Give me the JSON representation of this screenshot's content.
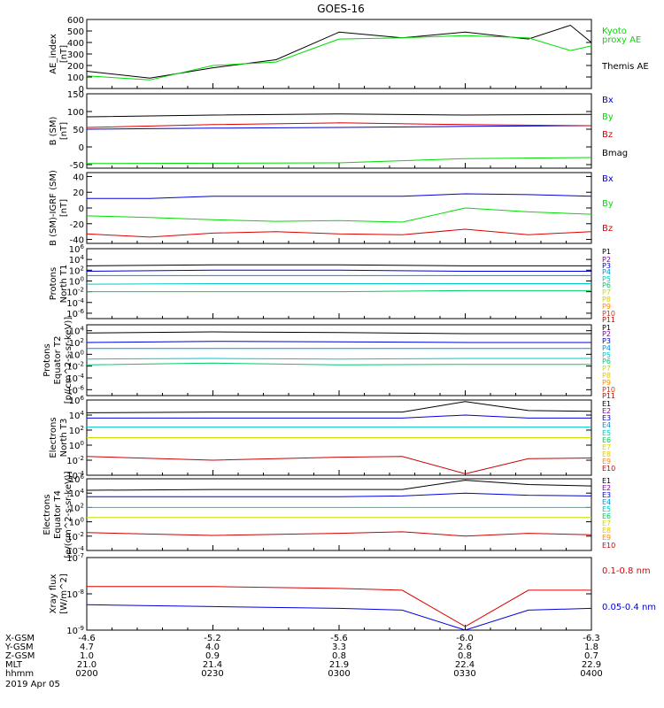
{
  "title": "GOES-16",
  "footer": {
    "date": "2019 Apr 05",
    "row_labels": [
      "X-GSM",
      "Y-GSM",
      "Z-GSM",
      "MLT",
      "hhmm"
    ],
    "columns": [
      [
        "-4.6",
        "4.7",
        "1.0",
        "21.0",
        "0200"
      ],
      [
        "-5.2",
        "4.0",
        "0.9",
        "21.4",
        "0230"
      ],
      [
        "-5.6",
        "3.3",
        "0.8",
        "21.9",
        "0300"
      ],
      [
        "-6.0",
        "2.6",
        "0.8",
        "22.4",
        "0330"
      ],
      [
        "-6.3",
        "1.8",
        "0.7",
        "22.9",
        "0400"
      ]
    ]
  },
  "chart_data": [
    {
      "type": "line",
      "ylabel": "AE_index [nT]",
      "ylim": [
        0,
        600
      ],
      "yticks": [
        "0",
        "100",
        "200",
        "300",
        "400",
        "500",
        "600"
      ],
      "scale": "linear",
      "legend": [
        {
          "label": "Kyoto",
          "color": "#00dd00"
        },
        {
          "label": "proxy AE",
          "color": "#00dd00"
        },
        {
          "label": "Themis AE",
          "color": "#000000"
        }
      ],
      "x": [
        "0200",
        "0215",
        "0230",
        "0245",
        "0300",
        "0315",
        "0330",
        "0345",
        "0355",
        "0400"
      ],
      "series": [
        {
          "name": "Themis AE",
          "color": "#000000",
          "values": [
            150,
            90,
            180,
            250,
            490,
            440,
            490,
            430,
            550,
            400
          ]
        },
        {
          "name": "Kyoto proxy AE",
          "color": "#00dd00",
          "values": [
            110,
            75,
            200,
            230,
            430,
            440,
            460,
            440,
            330,
            370
          ]
        }
      ]
    },
    {
      "type": "line",
      "ylabel": "B (SM) [nT]",
      "ylim": [
        -60,
        150
      ],
      "yticks": [
        "-50",
        "0",
        "50",
        "100",
        "150"
      ],
      "scale": "linear",
      "legend": [
        {
          "label": "Bx",
          "color": "#0000dd"
        },
        {
          "label": "By",
          "color": "#00dd00"
        },
        {
          "label": "Bz",
          "color": "#dd0000"
        },
        {
          "label": "Bmag",
          "color": "#000000"
        }
      ],
      "x": [
        "0200",
        "0230",
        "0300",
        "0330",
        "0400"
      ],
      "series": [
        {
          "name": "Bx",
          "color": "#0000dd",
          "values": [
            50,
            53,
            55,
            58,
            60
          ]
        },
        {
          "name": "By",
          "color": "#00dd00",
          "values": [
            -47,
            -46,
            -45,
            -33,
            -30
          ]
        },
        {
          "name": "Bz",
          "color": "#dd0000",
          "values": [
            55,
            63,
            68,
            63,
            60
          ]
        },
        {
          "name": "Bmag",
          "color": "#000000",
          "values": [
            85,
            90,
            93,
            90,
            92
          ]
        }
      ]
    },
    {
      "type": "line",
      "ylabel": "B (SM)-IGRF (SM) [nT]",
      "ylim": [
        -45,
        45
      ],
      "yticks": [
        "-40",
        "-20",
        "0",
        "20",
        "40"
      ],
      "scale": "linear",
      "legend": [
        {
          "label": "Bx",
          "color": "#0000dd"
        },
        {
          "label": "By",
          "color": "#00dd00"
        },
        {
          "label": "Bz",
          "color": "#dd0000"
        }
      ],
      "x": [
        "0200",
        "0215",
        "0230",
        "0245",
        "0300",
        "0315",
        "0330",
        "0345",
        "0400"
      ],
      "series": [
        {
          "name": "Bx",
          "color": "#0000dd",
          "values": [
            12,
            12,
            15,
            15,
            15,
            15,
            18,
            17,
            15
          ]
        },
        {
          "name": "By",
          "color": "#00dd00",
          "values": [
            -10,
            -12,
            -15,
            -17,
            -16,
            -18,
            0,
            -5,
            -8
          ]
        },
        {
          "name": "Bz",
          "color": "#dd0000",
          "values": [
            -33,
            -37,
            -32,
            -30,
            -33,
            -34,
            -27,
            -34,
            -30
          ]
        }
      ]
    },
    {
      "type": "line",
      "ylabel": "Protons North T1",
      "ylim": [
        -7,
        6
      ],
      "yticks": [
        "10^6",
        "10^4",
        "10^2",
        "10^0",
        "10^-2",
        "10^-4",
        "10^-6"
      ],
      "scale": "log10",
      "legend": [
        {
          "label": "P1",
          "color": "#000000"
        },
        {
          "label": "P2",
          "color": "#8000a0"
        },
        {
          "label": "P3",
          "color": "#0000dd"
        },
        {
          "label": "P4",
          "color": "#0090e0"
        },
        {
          "label": "P5",
          "color": "#00c8c8"
        },
        {
          "label": "P6",
          "color": "#00cc66"
        },
        {
          "label": "P7",
          "color": "#c8dd00"
        },
        {
          "label": "P8",
          "color": "#e0c800"
        },
        {
          "label": "P9",
          "color": "#ff8800"
        },
        {
          "label": "P10",
          "color": "#dd3300"
        },
        {
          "label": "P11",
          "color": "#cc0000"
        }
      ],
      "x": [
        "0200",
        "0230",
        "0300",
        "0330",
        "0400"
      ],
      "series": [
        {
          "name": "P1",
          "color": "#000000",
          "values": [
            2.8,
            3.0,
            3.0,
            2.8,
            2.8
          ]
        },
        {
          "name": "P3",
          "color": "#0000dd",
          "values": [
            1.8,
            2.0,
            2.0,
            1.8,
            1.8
          ]
        },
        {
          "name": "P4",
          "color": "#0090e0",
          "values": [
            1.0,
            1.0,
            1.0,
            1.0,
            1.0
          ]
        },
        {
          "name": "P5",
          "color": "#00c8c8",
          "values": [
            -0.6,
            -0.5,
            -0.5,
            -0.5,
            -0.5
          ]
        },
        {
          "name": "P6",
          "color": "#00cc66",
          "values": [
            -2.0,
            -2.0,
            -2.0,
            -1.8,
            -1.8
          ]
        }
      ]
    },
    {
      "type": "line",
      "ylabel": "Protons Equator T2 [p/(cm^2-s-sr-keV)]",
      "ylim": [
        -7,
        5
      ],
      "yticks": [
        "10^4",
        "10^2",
        "10^0",
        "10^-2",
        "10^-4",
        "10^-6"
      ],
      "scale": "log10",
      "legend": [
        {
          "label": "P1",
          "color": "#000000"
        },
        {
          "label": "P2",
          "color": "#8000a0"
        },
        {
          "label": "P3",
          "color": "#0000dd"
        },
        {
          "label": "P4",
          "color": "#0090e0"
        },
        {
          "label": "P5",
          "color": "#00c8c8"
        },
        {
          "label": "P6",
          "color": "#00cc66"
        },
        {
          "label": "P7",
          "color": "#c8dd00"
        },
        {
          "label": "P8",
          "color": "#e0c800"
        },
        {
          "label": "P9",
          "color": "#ff8800"
        },
        {
          "label": "P10",
          "color": "#dd3300"
        },
        {
          "label": "P11",
          "color": "#cc0000"
        }
      ],
      "x": [
        "0200",
        "0230",
        "0300",
        "0330",
        "0400"
      ],
      "series": [
        {
          "name": "P1",
          "color": "#000000",
          "values": [
            3.6,
            3.8,
            3.7,
            3.5,
            3.5
          ]
        },
        {
          "name": "P3",
          "color": "#0000dd",
          "values": [
            2.0,
            2.2,
            2.1,
            2.0,
            2.0
          ]
        },
        {
          "name": "P4",
          "color": "#0090e0",
          "values": [
            1.0,
            1.0,
            1.0,
            1.0,
            1.0
          ]
        },
        {
          "name": "P5",
          "color": "#00c8c8",
          "values": [
            -0.8,
            -0.7,
            -0.8,
            -0.7,
            -0.7
          ]
        },
        {
          "name": "P6",
          "color": "#00cc66",
          "values": [
            -1.8,
            -1.5,
            -1.8,
            -1.7,
            -1.7
          ]
        }
      ]
    },
    {
      "type": "line",
      "ylabel": "Electrons North T3",
      "ylim": [
        -4,
        6
      ],
      "yticks": [
        "10^6",
        "10^4",
        "10^2",
        "10^0",
        "10^-2",
        "10^-4"
      ],
      "scale": "log10",
      "legend": [
        {
          "label": "E1",
          "color": "#000000"
        },
        {
          "label": "E2",
          "color": "#8000a0"
        },
        {
          "label": "E3",
          "color": "#0000dd"
        },
        {
          "label": "E4",
          "color": "#0090e0"
        },
        {
          "label": "E5",
          "color": "#00c8c8"
        },
        {
          "label": "E6",
          "color": "#00cc66"
        },
        {
          "label": "E7",
          "color": "#c8dd00"
        },
        {
          "label": "E8",
          "color": "#e0c800"
        },
        {
          "label": "E9",
          "color": "#ff8800"
        },
        {
          "label": "E10",
          "color": "#cc0000"
        }
      ],
      "x": [
        "0200",
        "0230",
        "0300",
        "0315",
        "0330",
        "0345",
        "0400"
      ],
      "series": [
        {
          "name": "E1",
          "color": "#000000",
          "values": [
            4.3,
            4.4,
            4.4,
            4.4,
            5.8,
            4.6,
            4.5
          ]
        },
        {
          "name": "E3",
          "color": "#0000dd",
          "values": [
            3.6,
            3.6,
            3.6,
            3.6,
            4.0,
            3.6,
            3.6
          ]
        },
        {
          "name": "E5",
          "color": "#00c8c8",
          "values": [
            2.4,
            2.4,
            2.4,
            2.4,
            2.4,
            2.4,
            2.4
          ]
        },
        {
          "name": "E7",
          "color": "#c8dd00",
          "values": [
            1.0,
            1.0,
            1.0,
            1.0,
            1.0,
            1.0,
            1.0
          ]
        },
        {
          "name": "E10",
          "color": "#cc0000",
          "values": [
            -1.5,
            -2.0,
            -1.6,
            -1.5,
            -3.8,
            -1.8,
            -1.7
          ]
        }
      ]
    },
    {
      "type": "line",
      "ylabel": "Electrons Equator T4 [e/(cm^2-s-sr-keV)]",
      "ylim": [
        -4,
        6
      ],
      "yticks": [
        "10^6",
        "10^4",
        "10^2",
        "10^0",
        "10^-2",
        "10^-4"
      ],
      "scale": "log10",
      "legend": [
        {
          "label": "E1",
          "color": "#000000"
        },
        {
          "label": "E2",
          "color": "#8000a0"
        },
        {
          "label": "E3",
          "color": "#0000dd"
        },
        {
          "label": "E4",
          "color": "#0090e0"
        },
        {
          "label": "E5",
          "color": "#00c8c8"
        },
        {
          "label": "E6",
          "color": "#00cc66"
        },
        {
          "label": "E7",
          "color": "#c8dd00"
        },
        {
          "label": "E8",
          "color": "#e0c800"
        },
        {
          "label": "E9",
          "color": "#ff8800"
        },
        {
          "label": "E10",
          "color": "#cc0000"
        }
      ],
      "x": [
        "0200",
        "0230",
        "0300",
        "0315",
        "0330",
        "0345",
        "0400"
      ],
      "series": [
        {
          "name": "E1",
          "color": "#000000",
          "values": [
            4.4,
            4.5,
            4.5,
            4.5,
            5.8,
            5.2,
            5.0
          ]
        },
        {
          "name": "E3",
          "color": "#0000dd",
          "values": [
            3.5,
            3.5,
            3.5,
            3.6,
            4.0,
            3.7,
            3.6
          ]
        },
        {
          "name": "E5",
          "color": "#00c8c8",
          "values": [
            2.0,
            2.0,
            2.0,
            2.0,
            2.0,
            2.0,
            2.0
          ]
        },
        {
          "name": "E7",
          "color": "#c8dd00",
          "values": [
            0.6,
            0.6,
            0.6,
            0.6,
            0.6,
            0.6,
            0.6
          ]
        },
        {
          "name": "E10",
          "color": "#cc0000",
          "values": [
            -1.5,
            -1.9,
            -1.6,
            -1.4,
            -2.0,
            -1.6,
            -1.8
          ]
        }
      ]
    },
    {
      "type": "line",
      "ylabel": "Xray flux [W/m^2]",
      "ylim": [
        -9,
        -7
      ],
      "yticks": [
        "10^-7",
        "10^-8",
        "10^-9"
      ],
      "scale": "log10",
      "legend": [
        {
          "label": "0.1-0.8 nm",
          "color": "#dd0000"
        },
        {
          "label": "0.05-0.4 nm",
          "color": "#0000dd"
        }
      ],
      "x": [
        "0200",
        "0230",
        "0300",
        "0315",
        "0330",
        "0345",
        "0400"
      ],
      "series": [
        {
          "name": "0.1-0.8 nm",
          "color": "#dd0000",
          "values": [
            -7.8,
            -7.8,
            -7.85,
            -7.9,
            -8.9,
            -7.9,
            -7.9
          ]
        },
        {
          "name": "0.05-0.4 nm",
          "color": "#0000dd",
          "values": [
            -8.3,
            -8.35,
            -8.4,
            -8.45,
            -9.0,
            -8.45,
            -8.4
          ]
        }
      ]
    }
  ]
}
